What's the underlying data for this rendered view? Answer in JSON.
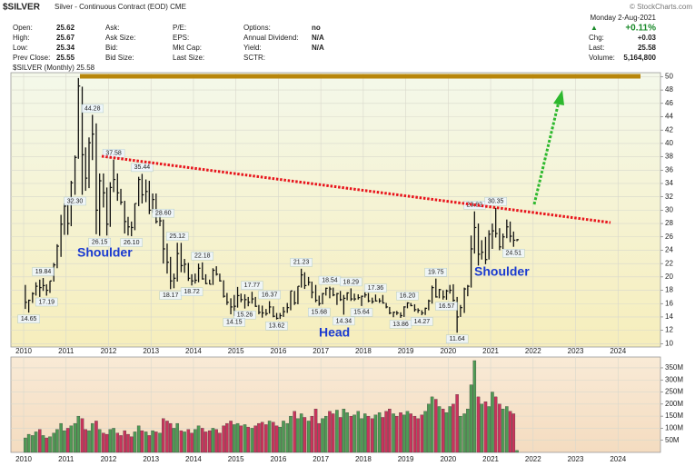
{
  "header": {
    "symbol": "$SILVER",
    "name": "Silver - Continuous Contract (EOD) CME",
    "copyright": "© StockCharts.com"
  },
  "quote": {
    "columns": [
      [
        {
          "label": "Open:",
          "value": 25.62
        },
        {
          "label": "High:",
          "value": 25.67
        },
        {
          "label": "Low:",
          "value": 25.34
        },
        {
          "label": "Prev Close:",
          "value": 25.55
        }
      ],
      [
        {
          "label": "Ask:"
        },
        {
          "label": "Ask Size:"
        },
        {
          "label": "Bid:"
        },
        {
          "label": "Bid Size:"
        }
      ],
      [
        {
          "label": "P/E:"
        },
        {
          "label": "EPS:"
        },
        {
          "label": "Mkt Cap:"
        },
        {
          "label": "Last Size:"
        }
      ],
      [
        {
          "label": "Options:",
          "value": "no"
        },
        {
          "label": "Annual Dividend:",
          "value": "N/A"
        },
        {
          "label": "Yield:",
          "value": "N/A"
        },
        {
          "label": "SCTR:"
        }
      ]
    ]
  },
  "summary": {
    "date": "Monday 2-Aug-2021",
    "change_pct": "+0.11%",
    "items": [
      {
        "label": "Chg:",
        "value": "+0.03"
      },
      {
        "label": "Last:",
        "value": 25.58
      },
      {
        "label": "Volume:",
        "value": "5,164,800"
      }
    ]
  },
  "chart_data": [
    {
      "type": "ohlc",
      "legend": "$SILVER (Monthly) 25.58",
      "color": "#111111",
      "grid": true,
      "pattern_labels": [
        "Shoulder",
        "Head",
        "Shoulder"
      ],
      "xlim": [
        2009.7,
        2025.0
      ],
      "xticks": [
        2010,
        2011,
        2012,
        2013,
        2014,
        2015,
        2016,
        2017,
        2018,
        2019,
        2020,
        2021,
        2022,
        2023,
        2024
      ],
      "ylim": [
        9.5,
        50.6
      ],
      "yticks": [
        10,
        12,
        14,
        16,
        18,
        20,
        22,
        24,
        26,
        28,
        30,
        32,
        34,
        36,
        38,
        40,
        42,
        44,
        46,
        48,
        50
      ],
      "x": [
        2010.04,
        2010.12,
        2010.21,
        2010.29,
        2010.38,
        2010.46,
        2010.54,
        2010.62,
        2010.71,
        2010.79,
        2010.88,
        2010.96,
        2011.04,
        2011.12,
        2011.21,
        2011.29,
        2011.38,
        2011.46,
        2011.54,
        2011.62,
        2011.71,
        2011.79,
        2011.88,
        2011.96,
        2012.04,
        2012.12,
        2012.21,
        2012.29,
        2012.38,
        2012.46,
        2012.54,
        2012.62,
        2012.71,
        2012.79,
        2012.88,
        2012.96,
        2013.04,
        2013.12,
        2013.21,
        2013.29,
        2013.38,
        2013.46,
        2013.54,
        2013.62,
        2013.71,
        2013.79,
        2013.88,
        2013.96,
        2014.04,
        2014.12,
        2014.21,
        2014.29,
        2014.38,
        2014.46,
        2014.54,
        2014.62,
        2014.71,
        2014.79,
        2014.88,
        2014.96,
        2015.04,
        2015.12,
        2015.21,
        2015.29,
        2015.38,
        2015.46,
        2015.54,
        2015.62,
        2015.71,
        2015.79,
        2015.88,
        2015.96,
        2016.04,
        2016.12,
        2016.21,
        2016.29,
        2016.38,
        2016.46,
        2016.54,
        2016.62,
        2016.71,
        2016.79,
        2016.88,
        2016.96,
        2017.04,
        2017.12,
        2017.21,
        2017.29,
        2017.38,
        2017.46,
        2017.54,
        2017.62,
        2017.71,
        2017.79,
        2017.88,
        2017.96,
        2018.04,
        2018.12,
        2018.21,
        2018.29,
        2018.38,
        2018.46,
        2018.54,
        2018.62,
        2018.71,
        2018.79,
        2018.88,
        2018.96,
        2019.04,
        2019.12,
        2019.21,
        2019.29,
        2019.38,
        2019.46,
        2019.54,
        2019.62,
        2019.71,
        2019.79,
        2019.88,
        2019.96,
        2020.04,
        2020.12,
        2020.21,
        2020.29,
        2020.38,
        2020.46,
        2020.54,
        2020.62,
        2020.71,
        2020.79,
        2020.88,
        2020.96,
        2021.04,
        2021.12,
        2021.21,
        2021.29,
        2021.38,
        2021.46,
        2021.54,
        2021.62
      ],
      "high": [
        18.8,
        16.6,
        17.7,
        19.2,
        19.6,
        19.84,
        18.9,
        19.4,
        22.1,
        24.9,
        29.3,
        31.0,
        30.9,
        34.4,
        38.2,
        49.8,
        48.5,
        39.4,
        40.9,
        44.28,
        43.0,
        35.5,
        35.5,
        33.4,
        34.2,
        37.58,
        35.5,
        33.2,
        31.4,
        29.0,
        28.3,
        31.0,
        35.0,
        35.44,
        34.6,
        34.4,
        32.5,
        32.5,
        29.3,
        28.6,
        25.0,
        23.0,
        20.5,
        25.12,
        25.1,
        22.7,
        22.1,
        20.4,
        20.5,
        22.0,
        22.18,
        20.4,
        19.6,
        21.3,
        21.6,
        20.5,
        19.5,
        17.6,
        16.8,
        17.3,
        18.5,
        17.5,
        17.4,
        17.0,
        17.77,
        17.0,
        15.8,
        15.7,
        15.2,
        16.37,
        15.6,
        14.6,
        14.6,
        15.5,
        16.1,
        17.9,
        17.9,
        18.6,
        21.23,
        20.7,
        20.0,
        19.3,
        18.8,
        17.2,
        17.6,
        18.4,
        18.54,
        18.4,
        17.6,
        17.9,
        17.3,
        17.7,
        18.29,
        17.5,
        17.4,
        17.2,
        17.7,
        17.6,
        16.9,
        17.36,
        16.8,
        17.3,
        16.1,
        15.5,
        14.8,
        14.9,
        14.7,
        15.6,
        16.2,
        16.1,
        15.9,
        15.3,
        15.0,
        15.4,
        16.6,
        18.7,
        19.75,
        18.2,
        18.0,
        18.1,
        18.8,
        18.9,
        17.0,
        15.8,
        18.4,
        18.8,
        26.2,
        29.82,
        28.0,
        25.5,
        26.0,
        27.0,
        28.0,
        30.35,
        27.3,
        26.5,
        28.6,
        28.3,
        26.8,
        25.67
      ],
      "low": [
        15.2,
        14.65,
        16.1,
        17.2,
        17.0,
        17.9,
        17.19,
        17.6,
        19.3,
        21.3,
        23.0,
        26.3,
        26.3,
        27.6,
        32.3,
        37.7,
        32.3,
        32.9,
        33.3,
        37.5,
        26.4,
        26.15,
        30.4,
        26.2,
        27.5,
        32.7,
        31.4,
        30.8,
        26.5,
        26.2,
        26.1,
        27.0,
        30.6,
        31.0,
        31.2,
        29.4,
        29.6,
        28.0,
        27.6,
        22.0,
        20.5,
        18.17,
        18.3,
        19.3,
        20.7,
        20.6,
        19.4,
        18.72,
        19.0,
        19.2,
        19.6,
        18.9,
        18.9,
        18.8,
        20.2,
        19.3,
        16.9,
        15.8,
        14.4,
        14.15,
        15.4,
        16.2,
        15.26,
        15.6,
        16.0,
        15.5,
        14.4,
        13.9,
        14.2,
        14.5,
        13.95,
        13.62,
        13.7,
        14.0,
        14.6,
        15.0,
        15.8,
        15.9,
        18.4,
        18.2,
        18.7,
        16.8,
        16.2,
        15.68,
        15.9,
        17.2,
        16.8,
        17.1,
        15.8,
        16.4,
        14.34,
        16.5,
        16.4,
        16.4,
        16.6,
        15.64,
        16.9,
        16.2,
        16.0,
        16.3,
        16.1,
        16.0,
        15.3,
        14.4,
        13.96,
        14.3,
        13.86,
        14.0,
        15.3,
        15.6,
        14.8,
        14.6,
        14.27,
        14.3,
        15.0,
        16.0,
        16.9,
        16.8,
        16.6,
        16.57,
        17.5,
        16.3,
        11.64,
        14.0,
        14.6,
        17.1,
        18.4,
        23.5,
        21.7,
        22.6,
        21.9,
        22.6,
        24.2,
        25.9,
        24.0,
        24.2,
        25.8,
        25.2,
        24.51,
        25.34
      ],
      "close": [
        16.2,
        16.5,
        17.5,
        18.6,
        18.4,
        18.7,
        18.0,
        19.4,
        21.8,
        24.6,
        27.9,
        30.6,
        28.0,
        34.1,
        37.9,
        48.6,
        38.3,
        34.8,
        40.1,
        41.4,
        30.0,
        34.4,
        32.6,
        27.9,
        33.4,
        34.6,
        32.6,
        31.2,
        28.3,
        27.5,
        27.4,
        31.0,
        34.6,
        32.3,
        32.8,
        30.0,
        31.6,
        28.3,
        28.4,
        24.2,
        22.2,
        19.4,
        19.8,
        23.5,
        21.7,
        21.9,
        19.8,
        19.4,
        19.5,
        21.3,
        19.7,
        19.0,
        18.9,
        21.0,
        20.4,
        19.4,
        17.1,
        16.2,
        15.5,
        15.6,
        17.2,
        16.6,
        16.6,
        16.2,
        16.7,
        15.6,
        14.7,
        14.6,
        14.5,
        15.5,
        14.1,
        13.8,
        14.2,
        14.8,
        15.4,
        17.9,
        16.1,
        18.6,
        20.3,
        18.7,
        19.2,
        17.7,
        16.5,
        16.0,
        17.5,
        18.3,
        18.2,
        17.3,
        17.5,
        16.6,
        16.8,
        17.6,
        16.7,
        16.7,
        16.9,
        17.1,
        17.3,
        16.4,
        16.3,
        16.4,
        16.4,
        16.1,
        15.5,
        14.6,
        14.7,
        14.6,
        14.2,
        15.5,
        16.1,
        15.7,
        15.1,
        15.0,
        14.6,
        15.3,
        16.4,
        18.4,
        17.0,
        18.1,
        17.0,
        17.9,
        18.0,
        16.5,
        14.0,
        15.4,
        18.2,
        18.6,
        24.2,
        27.4,
        23.4,
        23.7,
        22.6,
        26.4,
        26.9,
        26.5,
        24.5,
        26.0,
        27.5,
        26.1,
        25.5,
        25.58
      ],
      "annotations": [
        {
          "value": 14.65,
          "label": "14.65"
        },
        {
          "value": 17.19,
          "label": "17.19"
        },
        {
          "value": 19.84,
          "label": "19.84"
        },
        {
          "value": 32.3,
          "label": "32.30"
        },
        {
          "value": 44.28,
          "label": "44.28"
        },
        {
          "value": 26.15,
          "label": "26.15"
        },
        {
          "value": 37.58,
          "label": "37.58"
        },
        {
          "value": 26.1,
          "label": "26.10"
        },
        {
          "value": 35.44,
          "label": "35.44"
        },
        {
          "value": 25.12,
          "label": "25.12"
        },
        {
          "value": 18.17,
          "label": "18.17"
        },
        {
          "value": 22.18,
          "label": "22.18"
        },
        {
          "value": 18.72,
          "label": "18.72"
        },
        {
          "value": 17.77,
          "label": "17.77"
        },
        {
          "value": 15.26,
          "label": "15.26"
        },
        {
          "value": 14.15,
          "label": "14.15"
        },
        {
          "value": 16.37,
          "label": "16.37"
        },
        {
          "value": 13.62,
          "label": "13.62"
        },
        {
          "value": 21.23,
          "label": "21.23"
        },
        {
          "value": 15.68,
          "label": "15.68"
        },
        {
          "value": 18.54,
          "label": "18.54"
        },
        {
          "value": 14.34,
          "label": "14.34"
        },
        {
          "value": 18.29,
          "label": "18.29"
        },
        {
          "value": 15.64,
          "label": "15.64"
        },
        {
          "value": 17.36,
          "label": "17.36"
        },
        {
          "value": 16.2,
          "label": "16.20"
        },
        {
          "value": 13.86,
          "label": "13.86"
        },
        {
          "value": 14.27,
          "label": "14.27"
        },
        {
          "value": 19.75,
          "label": "19.75"
        },
        {
          "value": 16.57,
          "label": "16.57"
        },
        {
          "value": 11.64,
          "label": "11.64"
        },
        {
          "value": 29.82,
          "label": "29.82"
        },
        {
          "value": 30.35,
          "label": "30.35"
        },
        {
          "value": 28.6,
          "label": "28.60"
        },
        {
          "value": 24.51,
          "label": "24.51"
        }
      ]
    },
    {
      "type": "bar",
      "up_color": "#4f9a55",
      "down_color": "#c8345c",
      "grid": true,
      "xlim": [
        2009.7,
        2025.0
      ],
      "xticks": [
        2010,
        2011,
        2012,
        2013,
        2014,
        2015,
        2016,
        2017,
        2018,
        2019,
        2020,
        2021,
        2022,
        2023,
        2024
      ],
      "ylim": [
        0,
        395000000
      ],
      "yticks": [
        {
          "value": 50000000,
          "label": "50M"
        },
        {
          "value": 100000000,
          "label": "100M"
        },
        {
          "value": 150000000,
          "label": "150M"
        },
        {
          "value": 200000000,
          "label": "200M"
        },
        {
          "value": 250000000,
          "label": "250M"
        },
        {
          "value": 300000000,
          "label": "300M"
        },
        {
          "value": 350000000,
          "label": "350M"
        }
      ],
      "values": [
        60000000,
        75000000,
        70000000,
        85000000,
        95000000,
        70000000,
        60000000,
        65000000,
        80000000,
        95000000,
        120000000,
        90000000,
        100000000,
        110000000,
        120000000,
        150000000,
        140000000,
        95000000,
        90000000,
        120000000,
        130000000,
        95000000,
        80000000,
        75000000,
        95000000,
        100000000,
        80000000,
        70000000,
        90000000,
        75000000,
        65000000,
        85000000,
        110000000,
        90000000,
        85000000,
        70000000,
        90000000,
        85000000,
        80000000,
        140000000,
        130000000,
        120000000,
        100000000,
        120000000,
        90000000,
        85000000,
        95000000,
        80000000,
        95000000,
        110000000,
        100000000,
        85000000,
        90000000,
        100000000,
        95000000,
        80000000,
        110000000,
        120000000,
        130000000,
        115000000,
        120000000,
        110000000,
        115000000,
        105000000,
        100000000,
        110000000,
        120000000,
        125000000,
        115000000,
        130000000,
        125000000,
        110000000,
        105000000,
        130000000,
        120000000,
        150000000,
        170000000,
        140000000,
        160000000,
        145000000,
        130000000,
        150000000,
        180000000,
        120000000,
        140000000,
        150000000,
        170000000,
        160000000,
        175000000,
        145000000,
        180000000,
        165000000,
        150000000,
        155000000,
        170000000,
        140000000,
        160000000,
        150000000,
        140000000,
        155000000,
        165000000,
        145000000,
        170000000,
        180000000,
        160000000,
        150000000,
        165000000,
        155000000,
        170000000,
        160000000,
        150000000,
        140000000,
        155000000,
        170000000,
        200000000,
        230000000,
        220000000,
        190000000,
        180000000,
        165000000,
        190000000,
        200000000,
        240000000,
        150000000,
        160000000,
        180000000,
        280000000,
        380000000,
        230000000,
        200000000,
        210000000,
        190000000,
        250000000,
        230000000,
        200000000,
        180000000,
        190000000,
        170000000,
        160000000,
        8000000
      ]
    }
  ]
}
